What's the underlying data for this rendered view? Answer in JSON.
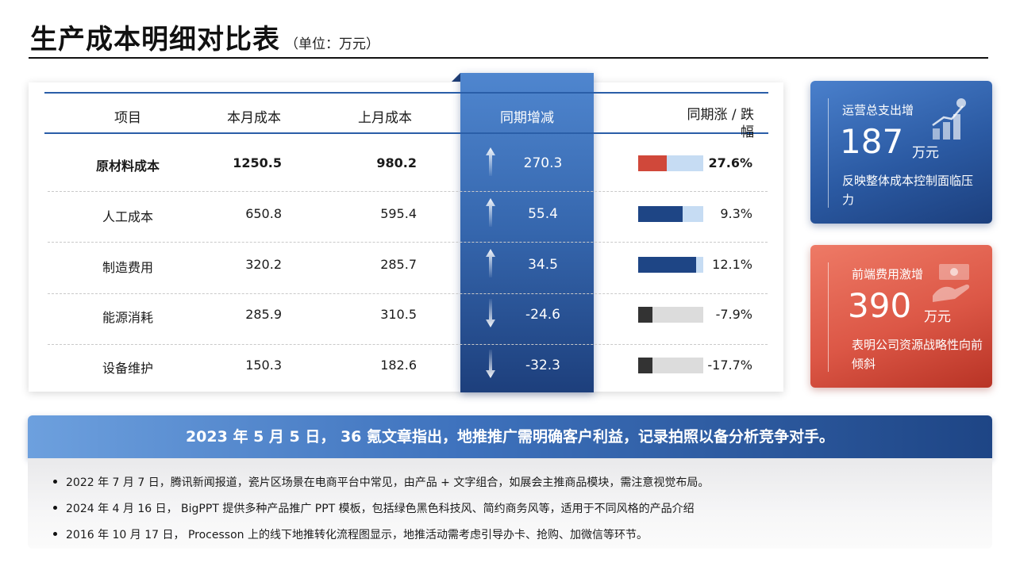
{
  "title": {
    "main": "生产成本明细对比表",
    "unit": "（单位：万元）"
  },
  "table": {
    "headers": [
      "项目",
      "本月成本",
      "上月成本",
      "同期增减",
      "同期涨 / 跌幅"
    ],
    "rows": [
      {
        "item": "原材料成本",
        "current": "1250.5",
        "previous": "980.2",
        "change": "270.3",
        "direction": "up",
        "rate": "27.6%",
        "rate_value": 27.6,
        "bar_color": "#d0483a",
        "bar_bg": "#c6dcf3",
        "bold": true
      },
      {
        "item": "人工成本",
        "current": "650.8",
        "previous": "595.4",
        "change": "55.4",
        "direction": "up",
        "rate": "9.3%",
        "rate_value": 9.3,
        "bar_color": "#1e4585",
        "bar_bg": "#c6dcf3",
        "bold": false
      },
      {
        "item": "制造费用",
        "current": "320.2",
        "previous": "285.7",
        "change": "34.5",
        "direction": "up",
        "rate": "12.1%",
        "rate_value": 12.1,
        "bar_color": "#1e4585",
        "bar_bg": "#c6dcf3",
        "bold": false
      },
      {
        "item": "能源消耗",
        "current": "285.9",
        "previous": "310.5",
        "change": "-24.6",
        "direction": "down",
        "rate": "-7.9%",
        "rate_value": -7.9,
        "bar_color": "#333333",
        "bar_bg": "#dcdcdc",
        "bold": false
      },
      {
        "item": "设备维护",
        "current": "150.3",
        "previous": "182.6",
        "change": "-32.3",
        "direction": "down",
        "rate": "-17.7%",
        "rate_value": -17.7,
        "bar_color": "#333333",
        "bar_bg": "#dcdcdc",
        "bold": false
      }
    ]
  },
  "kpi_cards": [
    {
      "label": "运营总支出增",
      "value": "187",
      "unit": "万元",
      "desc": "反映整体成本控制面临压力",
      "icon": "growth-chart-icon",
      "color": "#2b5aa3"
    },
    {
      "label": "前端费用激增",
      "value": "390",
      "unit": "万元",
      "desc": "表明公司资源战略性向前倾斜",
      "icon": "money-hand-icon",
      "color": "#dc5746"
    }
  ],
  "banner": {
    "text": "2023 年 5 月 5 日， 36 氪文章指出，地推推广需明确客户利益，记录拍照以备分析竞争对手。"
  },
  "notes": [
    "2022 年 7 月 7 日，腾讯新闻报道，瓷片区场景在电商平台中常见，由产品 + 文字组合，如展会主推商品模块，需注意视觉布局。",
    "2024 年 4 月 16 日， BigPPT 提供多种产品推广 PPT 模板，包括绿色黑色科技风、简约商务风等，适用于不同风格的产品介绍",
    "2016 年 10 月 17 日， Processon 上的线下地推转化流程图显示，地推活动需考虑引导办卡、抢购、加微信等环节。"
  ]
}
